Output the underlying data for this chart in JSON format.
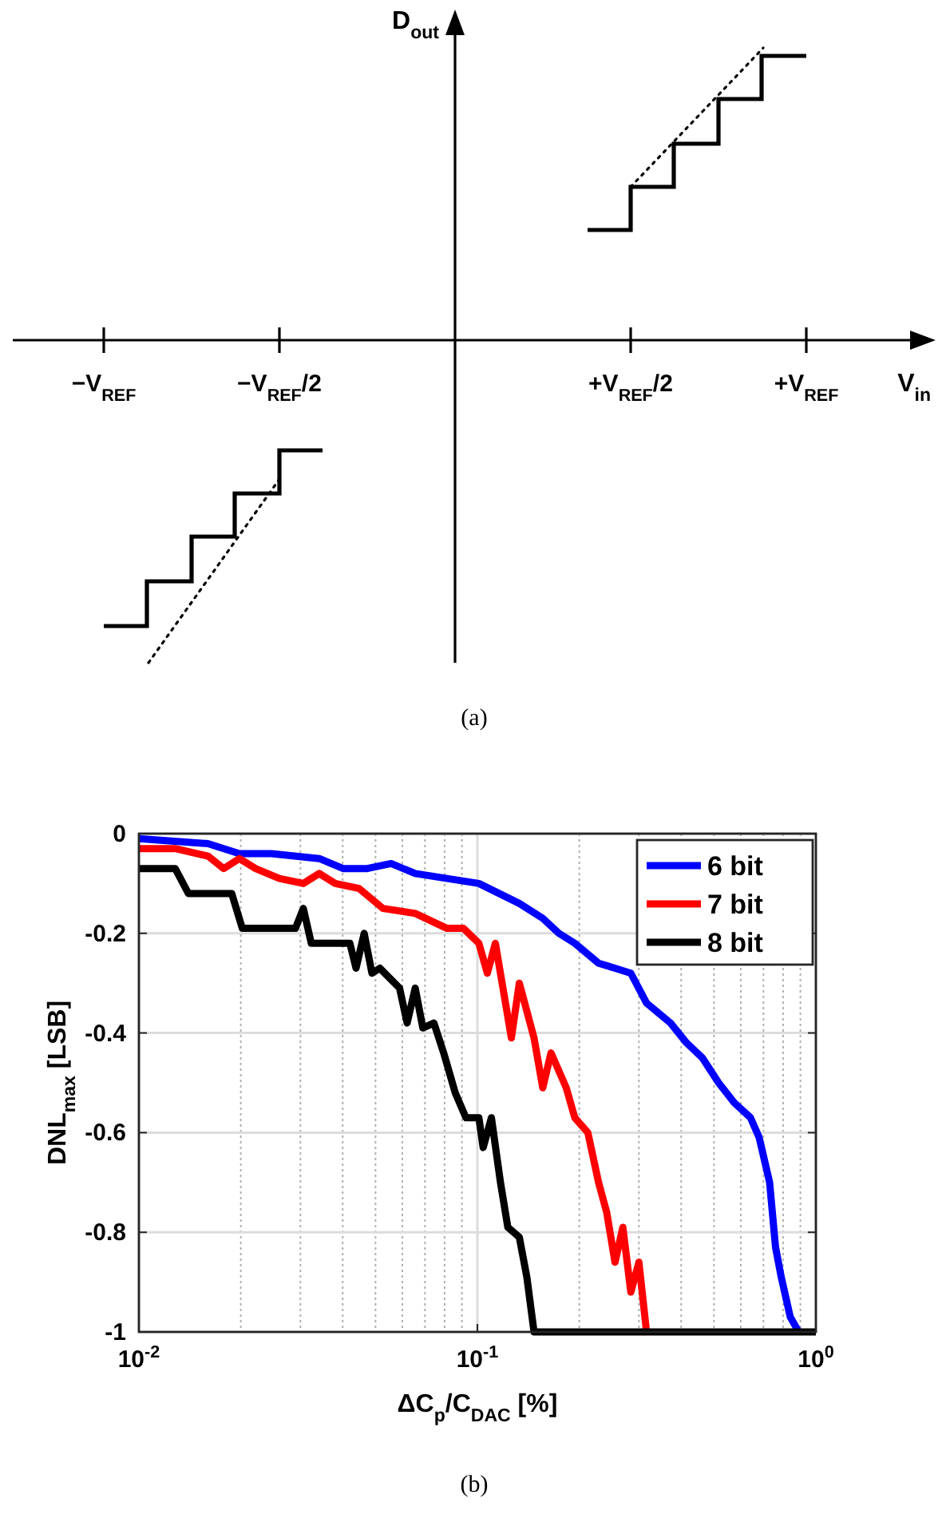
{
  "chart_data": [
    {
      "type": "other",
      "xlabel": "V$_{in}$",
      "ylabel": "D$_{out}$",
      "annotations": [
        "−V$_{REF}$",
        "−V$_{REF}$/2",
        "+V$_{REF}$/2",
        "+V$_{REF}$",
        "(a)"
      ]
    },
    {
      "type": "line",
      "xlabel": "ΔC$_{p}$/C$_{DAC}$ [%]",
      "ylabel": "DNL$_{max}$ [LSB]",
      "annotations": [
        "(b)"
      ],
      "log": "x",
      "grid": true,
      "legend": "top right",
      "xlim": [
        0.01,
        1
      ],
      "xticks": [
        {
          "value": 0.01,
          "label": "10$^{-2}$"
        },
        {
          "value": 0.1,
          "label": "10$^{-1}$"
        },
        {
          "value": 1,
          "label": "10$^{0}$"
        }
      ],
      "ylim": [
        -1,
        0
      ],
      "yticks": [
        -1,
        -0.8,
        -0.6,
        -0.4,
        -0.2,
        0
      ],
      "series": [
        {
          "name": "6 bit",
          "color": "#0000ff",
          "x": [
            0.01,
            0.016,
            0.0198,
            0.0246,
            0.0341,
            0.0401,
            0.0473,
            0.0556,
            0.0655,
            0.0813,
            0.101,
            0.133,
            0.156,
            0.174,
            0.194,
            0.228,
            0.255,
            0.284,
            0.316,
            0.372,
            0.415,
            0.462,
            0.516,
            0.574,
            0.641,
            0.68,
            0.73,
            0.76,
            0.79,
            0.84,
            0.89
          ],
          "values": [
            -0.01,
            -0.02,
            -0.04,
            -0.04,
            -0.05,
            -0.07,
            -0.07,
            -0.06,
            -0.08,
            -0.09,
            -0.1,
            -0.14,
            -0.17,
            -0.2,
            -0.22,
            -0.26,
            -0.27,
            -0.28,
            -0.34,
            -0.38,
            -0.42,
            -0.45,
            -0.5,
            -0.54,
            -0.57,
            -0.61,
            -0.7,
            -0.83,
            -0.89,
            -0.97,
            -1
          ]
        },
        {
          "name": "7 bit",
          "color": "#ff0000",
          "x": [
            0.01,
            0.0128,
            0.016,
            0.0178,
            0.0198,
            0.0221,
            0.026,
            0.0306,
            0.0341,
            0.038,
            0.0447,
            0.0526,
            0.0655,
            0.0813,
            0.0909,
            0.101,
            0.107,
            0.113,
            0.119,
            0.126,
            0.133,
            0.147,
            0.156,
            0.165,
            0.183,
            0.194,
            0.212,
            0.228,
            0.241,
            0.255,
            0.269,
            0.284,
            0.3,
            0.316
          ],
          "values": [
            -0.03,
            -0.03,
            -0.045,
            -0.07,
            -0.05,
            -0.07,
            -0.09,
            -0.1,
            -0.08,
            -0.1,
            -0.11,
            -0.15,
            -0.16,
            -0.19,
            -0.19,
            -0.22,
            -0.28,
            -0.22,
            -0.31,
            -0.41,
            -0.3,
            -0.41,
            -0.51,
            -0.44,
            -0.51,
            -0.57,
            -0.6,
            -0.7,
            -0.76,
            -0.86,
            -0.79,
            -0.92,
            -0.86,
            -1
          ]
        },
        {
          "name": "8 bit",
          "color": "#000000",
          "x": [
            0.01,
            0.0128,
            0.014,
            0.0188,
            0.0202,
            0.029,
            0.0306,
            0.0323,
            0.042,
            0.0438,
            0.0463,
            0.0488,
            0.0515,
            0.0589,
            0.062,
            0.0655,
            0.069,
            0.0744,
            0.0795,
            0.086,
            0.0925,
            0.101,
            0.104,
            0.11,
            0.117,
            0.123,
            0.133,
            0.14,
            0.147,
            1
          ],
          "values": [
            -0.07,
            -0.07,
            -0.12,
            -0.12,
            -0.19,
            -0.19,
            -0.15,
            -0.22,
            -0.22,
            -0.27,
            -0.2,
            -0.28,
            -0.27,
            -0.31,
            -0.38,
            -0.31,
            -0.39,
            -0.38,
            -0.44,
            -0.52,
            -0.57,
            -0.57,
            -0.63,
            -0.57,
            -0.7,
            -0.79,
            -0.81,
            -0.89,
            -1,
            -1
          ]
        }
      ]
    }
  ]
}
